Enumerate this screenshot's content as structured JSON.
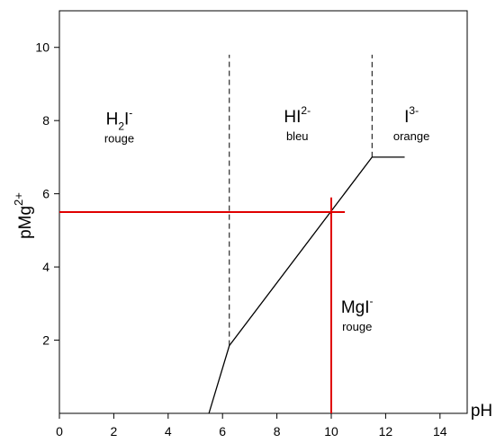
{
  "chart_data": {
    "type": "line",
    "title": "",
    "xlabel": "pH",
    "ylabel": {
      "main": "pMg",
      "sup": "2+"
    },
    "xlim": [
      0,
      15
    ],
    "ylim": [
      0,
      11
    ],
    "xticks": [
      0,
      2,
      4,
      6,
      8,
      10,
      12,
      14
    ],
    "yticks": [
      2,
      4,
      6,
      8,
      10
    ],
    "grid": false,
    "boundary_curve": {
      "x": [
        5.5,
        6.25,
        11.5,
        12.7
      ],
      "y": [
        0,
        1.85,
        7.0,
        7.0
      ]
    },
    "dashed_boundaries": [
      {
        "x": 6.25,
        "y_from": 1.85,
        "y_to": 9.8
      },
      {
        "x": 11.5,
        "y_from": 7.0,
        "y_to": 9.8
      }
    ],
    "red_lines": {
      "color": "#e00000",
      "horizontal": {
        "y": 5.5,
        "x_from": 0,
        "x_to": 10.5
      },
      "vertical": {
        "x": 10,
        "y_from": 0,
        "y_to": 5.9
      }
    },
    "regions": [
      {
        "id": "h2i",
        "at": [
          2.2,
          7.9
        ],
        "parts": [
          [
            "H",
            false
          ],
          [
            "2",
            "sub"
          ],
          [
            "I",
            false
          ],
          [
            "-",
            "sup"
          ]
        ],
        "color_word": "rouge"
      },
      {
        "id": "hi2",
        "at": [
          8.75,
          7.95
        ],
        "parts": [
          [
            "HI",
            false
          ],
          [
            "2-",
            "sup"
          ]
        ],
        "color_word": "bleu"
      },
      {
        "id": "i3",
        "at": [
          12.95,
          7.95
        ],
        "parts": [
          [
            "I",
            false
          ],
          [
            "3-",
            "sup"
          ]
        ],
        "color_word": "orange"
      },
      {
        "id": "mgi",
        "at": [
          10.95,
          2.75
        ],
        "parts": [
          [
            "MgI",
            false
          ],
          [
            "-",
            "sup"
          ]
        ],
        "color_word": "rouge"
      }
    ]
  }
}
